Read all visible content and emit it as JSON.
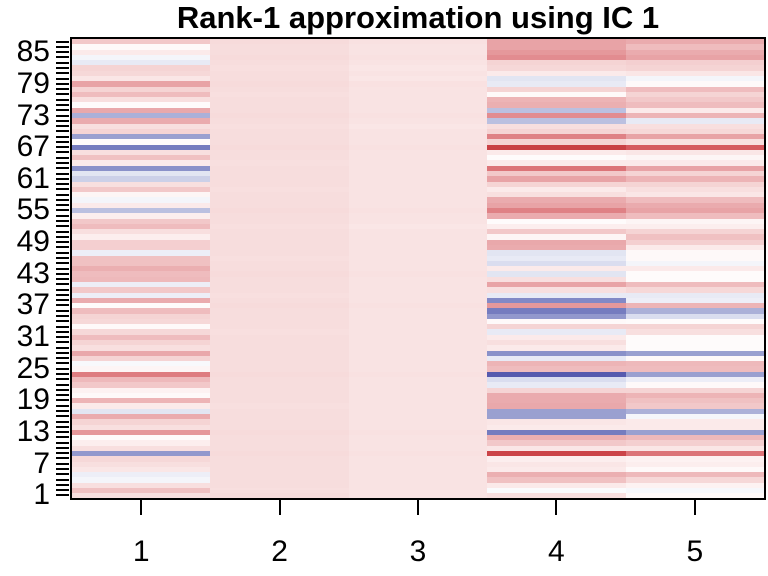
{
  "chart_data": {
    "type": "heatmap",
    "title": "Rank-1 approximation using IC 1",
    "xlabel": "",
    "ylabel": "",
    "x_tick_labels": [
      "1",
      "2",
      "3",
      "4",
      "5"
    ],
    "y_tick_labels": [
      "85",
      "79",
      "73",
      "67",
      "61",
      "55",
      "49",
      "43",
      "37",
      "31",
      "25",
      "19",
      "13",
      "7",
      "1"
    ],
    "n_rows": 87,
    "n_cols": 5,
    "row_order": "top_to_bottom_row87_first",
    "grid": false,
    "frame_color": "#000000",
    "background": "#ffffff",
    "colormap": {
      "type": "diverging",
      "negative_end": "#4a4da6",
      "zero": "#ffffff",
      "positive_end": "#c03a3e",
      "stops": [
        [
          -0.8,
          "#4a4da6"
        ],
        [
          -0.65,
          "#5c61b2"
        ],
        [
          -0.5,
          "#8289c6"
        ],
        [
          -0.35,
          "#9aa0d0"
        ],
        [
          -0.2,
          "#ccd0e8"
        ],
        [
          -0.1,
          "#e8eaf5"
        ],
        [
          0.0,
          "#ffffff"
        ],
        [
          0.1,
          "#fbeaea"
        ],
        [
          0.2,
          "#f5d4d4"
        ],
        [
          0.3,
          "#efbcbe"
        ],
        [
          0.45,
          "#e8a3a6"
        ],
        [
          0.6,
          "#df8185"
        ],
        [
          0.75,
          "#d5595e"
        ],
        [
          0.9,
          "#c94145"
        ],
        [
          1.0,
          "#c03a3e"
        ]
      ]
    },
    "values": [
      [
        0.25,
        0.17,
        0.14,
        0.45,
        0.4
      ],
      [
        0.03,
        0.16,
        0.13,
        0.45,
        0.3
      ],
      [
        0.1,
        0.16,
        0.13,
        0.5,
        0.4
      ],
      [
        -0.05,
        0.17,
        0.14,
        0.55,
        0.45
      ],
      [
        -0.1,
        0.16,
        0.13,
        0.2,
        0.22
      ],
      [
        0.2,
        0.15,
        0.12,
        0.18,
        0.2
      ],
      [
        0.18,
        0.16,
        0.13,
        0.1,
        0.12
      ],
      [
        0.12,
        0.16,
        0.12,
        -0.12,
        -0.05
      ],
      [
        0.45,
        0.17,
        0.14,
        -0.1,
        0.03
      ],
      [
        0.2,
        0.16,
        0.13,
        0.2,
        0.3
      ],
      [
        0.3,
        0.15,
        0.13,
        0.03,
        0.2
      ],
      [
        0.15,
        0.16,
        0.13,
        0.35,
        0.25
      ],
      [
        0.02,
        0.16,
        0.13,
        0.38,
        0.3
      ],
      [
        0.42,
        0.16,
        0.13,
        -0.25,
        0.1
      ],
      [
        -0.3,
        0.17,
        0.14,
        0.55,
        0.35
      ],
      [
        0.4,
        0.16,
        0.13,
        -0.25,
        -0.1
      ],
      [
        0.15,
        0.15,
        0.12,
        0.15,
        0.15
      ],
      [
        0.2,
        0.16,
        0.13,
        0.2,
        0.18
      ],
      [
        -0.35,
        0.16,
        0.13,
        0.6,
        0.45
      ],
      [
        0.02,
        0.16,
        0.13,
        0.2,
        0.15
      ],
      [
        -0.55,
        0.17,
        0.14,
        0.9,
        0.75
      ],
      [
        0.15,
        0.16,
        0.13,
        0.1,
        0.12
      ],
      [
        0.28,
        0.16,
        0.13,
        0.02,
        0.05
      ],
      [
        0.1,
        0.15,
        0.13,
        0.1,
        0.1
      ],
      [
        -0.45,
        0.16,
        0.13,
        0.65,
        0.45
      ],
      [
        -0.12,
        0.16,
        0.13,
        0.25,
        0.2
      ],
      [
        -0.2,
        0.16,
        0.13,
        0.45,
        0.35
      ],
      [
        0.15,
        0.16,
        0.13,
        0.2,
        0.2
      ],
      [
        0.25,
        0.15,
        0.13,
        0.1,
        0.15
      ],
      [
        0.05,
        0.16,
        0.13,
        0.15,
        0.12
      ],
      [
        -0.05,
        0.16,
        0.13,
        0.4,
        0.3
      ],
      [
        0.1,
        0.16,
        0.13,
        0.45,
        0.4
      ],
      [
        -0.25,
        0.17,
        0.14,
        0.6,
        0.45
      ],
      [
        0.08,
        0.16,
        0.13,
        0.4,
        0.3
      ],
      [
        0.25,
        0.16,
        0.13,
        0.02,
        0.05
      ],
      [
        0.3,
        0.15,
        0.12,
        0.08,
        0.08
      ],
      [
        0.15,
        0.16,
        0.13,
        0.25,
        0.2
      ],
      [
        0.08,
        0.16,
        0.13,
        0.05,
        0.28
      ],
      [
        0.22,
        0.16,
        0.13,
        0.42,
        0.22
      ],
      [
        0.22,
        0.16,
        0.13,
        0.4,
        0.1
      ],
      [
        -0.08,
        0.16,
        0.13,
        -0.12,
        0.03
      ],
      [
        0.28,
        0.15,
        0.13,
        -0.1,
        0.03
      ],
      [
        0.28,
        0.16,
        0.13,
        -0.15,
        -0.05
      ],
      [
        0.38,
        0.16,
        0.13,
        0.1,
        0.1
      ],
      [
        0.3,
        0.17,
        0.14,
        -0.12,
        0.02
      ],
      [
        0.32,
        0.16,
        0.13,
        0.15,
        0.02
      ],
      [
        -0.08,
        0.16,
        0.13,
        0.45,
        0.3
      ],
      [
        0.25,
        0.16,
        0.13,
        0.15,
        0.18
      ],
      [
        -0.08,
        0.15,
        0.13,
        -0.1,
        -0.1
      ],
      [
        0.4,
        0.16,
        0.13,
        -0.5,
        -0.08
      ],
      [
        0.02,
        0.17,
        0.14,
        0.5,
        0.35
      ],
      [
        0.3,
        0.16,
        0.13,
        -0.55,
        -0.3
      ],
      [
        0.2,
        0.16,
        0.13,
        -0.4,
        -0.15
      ],
      [
        0.18,
        0.16,
        0.13,
        0.03,
        0.02
      ],
      [
        0.03,
        0.16,
        0.13,
        0.2,
        0.2
      ],
      [
        0.18,
        0.15,
        0.13,
        -0.1,
        0.15
      ],
      [
        0.3,
        0.16,
        0.13,
        0.1,
        0.02
      ],
      [
        0.2,
        0.16,
        0.13,
        0.15,
        0.02
      ],
      [
        0.15,
        0.16,
        0.13,
        0.1,
        0.02
      ],
      [
        0.42,
        0.16,
        0.13,
        -0.45,
        -0.35
      ],
      [
        0.2,
        0.16,
        0.13,
        -0.1,
        0.03
      ],
      [
        -0.03,
        0.16,
        0.13,
        0.35,
        0.32
      ],
      [
        0.05,
        0.16,
        0.13,
        0.3,
        0.3
      ],
      [
        0.62,
        0.17,
        0.14,
        -0.7,
        -0.35
      ],
      [
        0.32,
        0.16,
        0.13,
        -0.15,
        -0.08
      ],
      [
        0.25,
        0.16,
        0.13,
        -0.1,
        0.03
      ],
      [
        0.06,
        0.16,
        0.13,
        0.2,
        0.2
      ],
      [
        0.03,
        0.16,
        0.13,
        0.4,
        0.35
      ],
      [
        0.35,
        0.16,
        0.13,
        0.4,
        0.28
      ],
      [
        0.1,
        0.15,
        0.13,
        0.42,
        0.25
      ],
      [
        -0.12,
        0.16,
        0.13,
        -0.35,
        -0.3
      ],
      [
        0.4,
        0.16,
        0.13,
        -0.35,
        -0.05
      ],
      [
        0.2,
        0.16,
        0.13,
        0.12,
        0.1
      ],
      [
        0.15,
        0.16,
        0.13,
        0.1,
        0.1
      ],
      [
        0.5,
        0.17,
        0.14,
        -0.55,
        -0.35
      ],
      [
        0.02,
        0.16,
        0.13,
        0.38,
        0.32
      ],
      [
        0.08,
        0.16,
        0.13,
        0.25,
        0.22
      ],
      [
        0.15,
        0.16,
        0.13,
        0.12,
        0.12
      ],
      [
        -0.4,
        0.17,
        0.14,
        0.88,
        0.65
      ],
      [
        0.18,
        0.16,
        0.13,
        0.08,
        0.06
      ],
      [
        0.15,
        0.16,
        0.13,
        0.12,
        0.08
      ],
      [
        0.12,
        0.16,
        0.13,
        0.1,
        0.03
      ],
      [
        -0.08,
        0.16,
        0.13,
        0.38,
        0.32
      ],
      [
        -0.05,
        0.16,
        0.13,
        0.28,
        0.18
      ],
      [
        0.15,
        0.16,
        0.13,
        0.1,
        0.06
      ],
      [
        0.28,
        0.15,
        0.13,
        -0.02,
        -0.04
      ],
      [
        0.15,
        0.16,
        0.13,
        0.15,
        0.03
      ]
    ]
  }
}
